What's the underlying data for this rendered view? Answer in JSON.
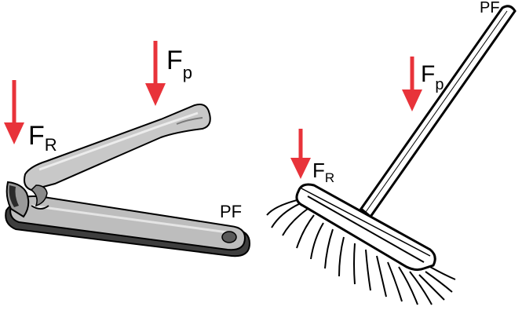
{
  "colors": {
    "arrow": "#e8333a",
    "metal_light": "#cfcfcf",
    "metal_mid": "#b4b4b4",
    "metal_dark": "#4a4a4a",
    "outline": "#000000",
    "broom_fill": "#ffffff"
  },
  "nail_clipper": {
    "force_load_main": "F",
    "force_load_sub": "R",
    "force_effort_main": "F",
    "force_effort_sub": "p",
    "pivot_label": "PF"
  },
  "broom": {
    "force_load_main": "F",
    "force_load_sub": "R",
    "force_effort_main": "F",
    "force_effort_sub": "p",
    "pivot_label": "PF"
  }
}
